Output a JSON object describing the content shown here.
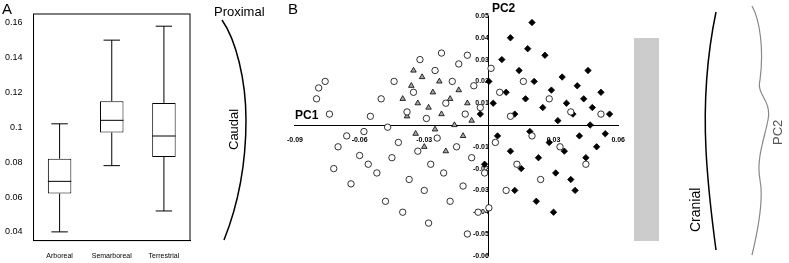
{
  "chart_data": [
    {
      "type": "box",
      "panel_label": "A",
      "annotations": [
        "Proximal",
        "Caudal"
      ],
      "categories": [
        "Arboreal",
        "Semarboreal",
        "Terrestrial"
      ],
      "min": [
        0.04,
        0.078,
        0.052
      ],
      "q1": [
        0.062,
        0.097,
        0.083
      ],
      "median": [
        0.069,
        0.104,
        0.095
      ],
      "q3": [
        0.082,
        0.115,
        0.114
      ],
      "max": [
        0.102,
        0.15,
        0.158
      ],
      "color": "#000000",
      "ylim": [
        0.035,
        0.165
      ],
      "yticks": [
        0.04,
        0.06,
        0.08,
        0.1,
        0.12,
        0.14,
        0.16
      ]
    },
    {
      "type": "scatter",
      "panel_label": "B",
      "annotations": [
        "Cranial",
        "PC2"
      ],
      "x_label": "PC1",
      "y_label": "PC2",
      "xlim": [
        -0.09,
        0.06
      ],
      "xticks": [
        -0.09,
        -0.06,
        -0.03,
        0.03,
        0.06
      ],
      "ylim": [
        -0.06,
        0.05
      ],
      "yticks": [
        0.05,
        0.04,
        0.03,
        0.02,
        0.01,
        -0.01,
        -0.02,
        -0.03,
        -0.04,
        -0.05,
        -0.06
      ],
      "series": [
        {
          "color": "#ffffff",
          "marker": "circle",
          "x": [
            -0.08,
            -0.079,
            -0.076,
            -0.074,
            -0.07,
            -0.072,
            -0.066,
            -0.064,
            -0.06,
            -0.058,
            -0.056,
            -0.055,
            -0.052,
            -0.05,
            -0.048,
            -0.047,
            -0.045,
            -0.044,
            -0.042,
            -0.04,
            -0.038,
            -0.037,
            -0.035,
            -0.033,
            -0.032,
            -0.03,
            -0.029,
            -0.027,
            -0.025,
            -0.024,
            -0.022,
            -0.021,
            -0.02,
            -0.018,
            -0.017,
            -0.015,
            -0.014,
            -0.012,
            -0.011,
            -0.01,
            -0.008,
            -0.007,
            -0.005,
            -0.004,
            -0.002,
            0.001,
            0.003,
            0.005,
            0.008,
            0.01,
            0.013,
            0.016,
            0.02,
            0.024,
            0.028,
            0.033,
            0.038,
            0.045,
            0.052,
            -0.028,
            -0.01,
            0.0
          ],
          "values": [
            0.012,
            0.017,
            0.02,
            0.005,
            -0.01,
            -0.02,
            -0.005,
            -0.027,
            -0.014,
            -0.003,
            -0.018,
            0.004,
            -0.022,
            0.012,
            -0.035,
            -0.001,
            -0.015,
            0.02,
            -0.008,
            -0.04,
            0.006,
            -0.025,
            0.015,
            -0.012,
            0.03,
            -0.03,
            0.003,
            -0.018,
            0.025,
            -0.006,
            0.033,
            -0.022,
            0.01,
            -0.035,
            0.02,
            -0.01,
            0.028,
            -0.028,
            0.005,
            0.032,
            -0.015,
            0.018,
            -0.04,
            0.008,
            -0.022,
            0.026,
            -0.008,
            0.015,
            -0.03,
            0.004,
            -0.018,
            0.02,
            -0.005,
            -0.025,
            0.012,
            -0.01,
            0.006,
            -0.018,
            0.005,
            -0.045,
            -0.05,
            -0.038
          ]
        },
        {
          "color": "#a6a6a6",
          "marker": "triangle",
          "x": [
            -0.04,
            -0.038,
            -0.036,
            -0.034,
            -0.033,
            -0.031,
            -0.03,
            -0.028,
            -0.026,
            -0.025,
            -0.023,
            -0.022,
            -0.02,
            -0.018,
            -0.016,
            -0.014,
            -0.012,
            -0.01,
            -0.008,
            -0.035
          ],
          "values": [
            0.012,
            0.004,
            0.018,
            -0.004,
            0.01,
            0.022,
            -0.01,
            0.008,
            0.015,
            -0.002,
            0.02,
            0.005,
            -0.012,
            0.012,
            0.0,
            0.016,
            -0.005,
            0.01,
            0.002,
            0.025
          ]
        },
        {
          "color": "#000000",
          "marker": "diamond",
          "x": [
            0.0,
            0.002,
            0.004,
            0.006,
            0.008,
            0.01,
            0.012,
            0.014,
            0.015,
            0.017,
            0.019,
            0.02,
            0.021,
            0.023,
            0.025,
            0.026,
            0.028,
            0.029,
            0.031,
            0.032,
            0.034,
            0.035,
            0.036,
            0.038,
            0.039,
            0.041,
            0.042,
            0.044,
            0.045,
            0.047,
            0.048,
            0.05,
            0.052,
            0.054,
            0.056,
            0.012,
            0.022,
            0.03,
            -0.002,
            -0.004,
            0.018,
            0.01,
            0.04,
            0.046
          ],
          "values": [
            0.02,
            0.01,
            -0.005,
            0.03,
            0.015,
            -0.012,
            0.005,
            0.025,
            -0.02,
            0.012,
            -0.003,
            0.047,
            0.02,
            -0.015,
            0.008,
            0.032,
            -0.008,
            0.016,
            -0.022,
            0.002,
            0.022,
            -0.012,
            0.01,
            -0.025,
            0.005,
            0.018,
            -0.005,
            0.012,
            -0.015,
            0.0,
            0.008,
            -0.01,
            0.015,
            -0.004,
            0.005,
            -0.03,
            -0.035,
            -0.04,
            -0.018,
            0.005,
            0.035,
            0.04,
            -0.03,
            0.025
          ]
        }
      ]
    }
  ]
}
